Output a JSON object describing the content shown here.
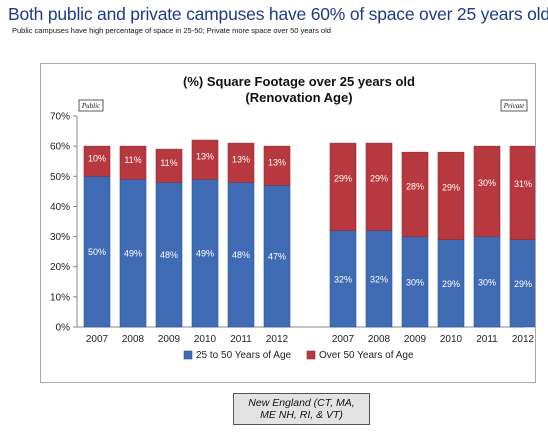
{
  "slide": {
    "title": "Both public and private campuses have 60% of space over 25 years old",
    "subtitle": "Public campuses have high percentage of space in 25-50; Private more space over 50 years old"
  },
  "note": {
    "line1": "New England  (CT, MA,",
    "line2": "ME NH, RI, & VT)"
  },
  "chart_data": {
    "type": "bar",
    "stacked": true,
    "title": "(%) Square Footage over 25 years old",
    "subtitle": "(Renovation Age)",
    "ylim": [
      0,
      70
    ],
    "yticks": [
      "0%",
      "10%",
      "20%",
      "30%",
      "40%",
      "50%",
      "60%",
      "70%"
    ],
    "grid": false,
    "legend_position": "bottom",
    "groups": [
      {
        "label": "Public",
        "categories": [
          "2007",
          "2008",
          "2009",
          "2010",
          "2011",
          "2012"
        ],
        "series": [
          {
            "name": "25 to 50 Years of Age",
            "values": [
              50,
              49,
              48,
              49,
              48,
              47
            ],
            "labels": [
              "50%",
              "49%",
              "48%",
              "49%",
              "48%",
              "47%"
            ]
          },
          {
            "name": "Over 50 Years of Age",
            "values": [
              10,
              11,
              11,
              13,
              13,
              13
            ],
            "labels": [
              "10%",
              "11%",
              "11%",
              "13%",
              "13%",
              "13%"
            ]
          }
        ]
      },
      {
        "label": "Private",
        "categories": [
          "2007",
          "2008",
          "2009",
          "2010",
          "2011",
          "2012"
        ],
        "series": [
          {
            "name": "25 to 50 Years of Age",
            "values": [
              32,
              32,
              30,
              29,
              30,
              29
            ],
            "labels": [
              "32%",
              "32%",
              "30%",
              "29%",
              "30%",
              "29%"
            ]
          },
          {
            "name": "Over 50 Years of Age",
            "values": [
              29,
              29,
              28,
              29,
              30,
              31
            ],
            "labels": [
              "29%",
              "29%",
              "28%",
              "29%",
              "30%",
              "31%"
            ]
          }
        ]
      }
    ],
    "legend": [
      "25 to 50 Years of Age",
      "Over 50 Years of Age"
    ],
    "colors": {
      "blue": "#3f6bb5",
      "blue_edge": "#2f5597",
      "red": "#b8383f",
      "red_edge": "#922d33"
    }
  }
}
